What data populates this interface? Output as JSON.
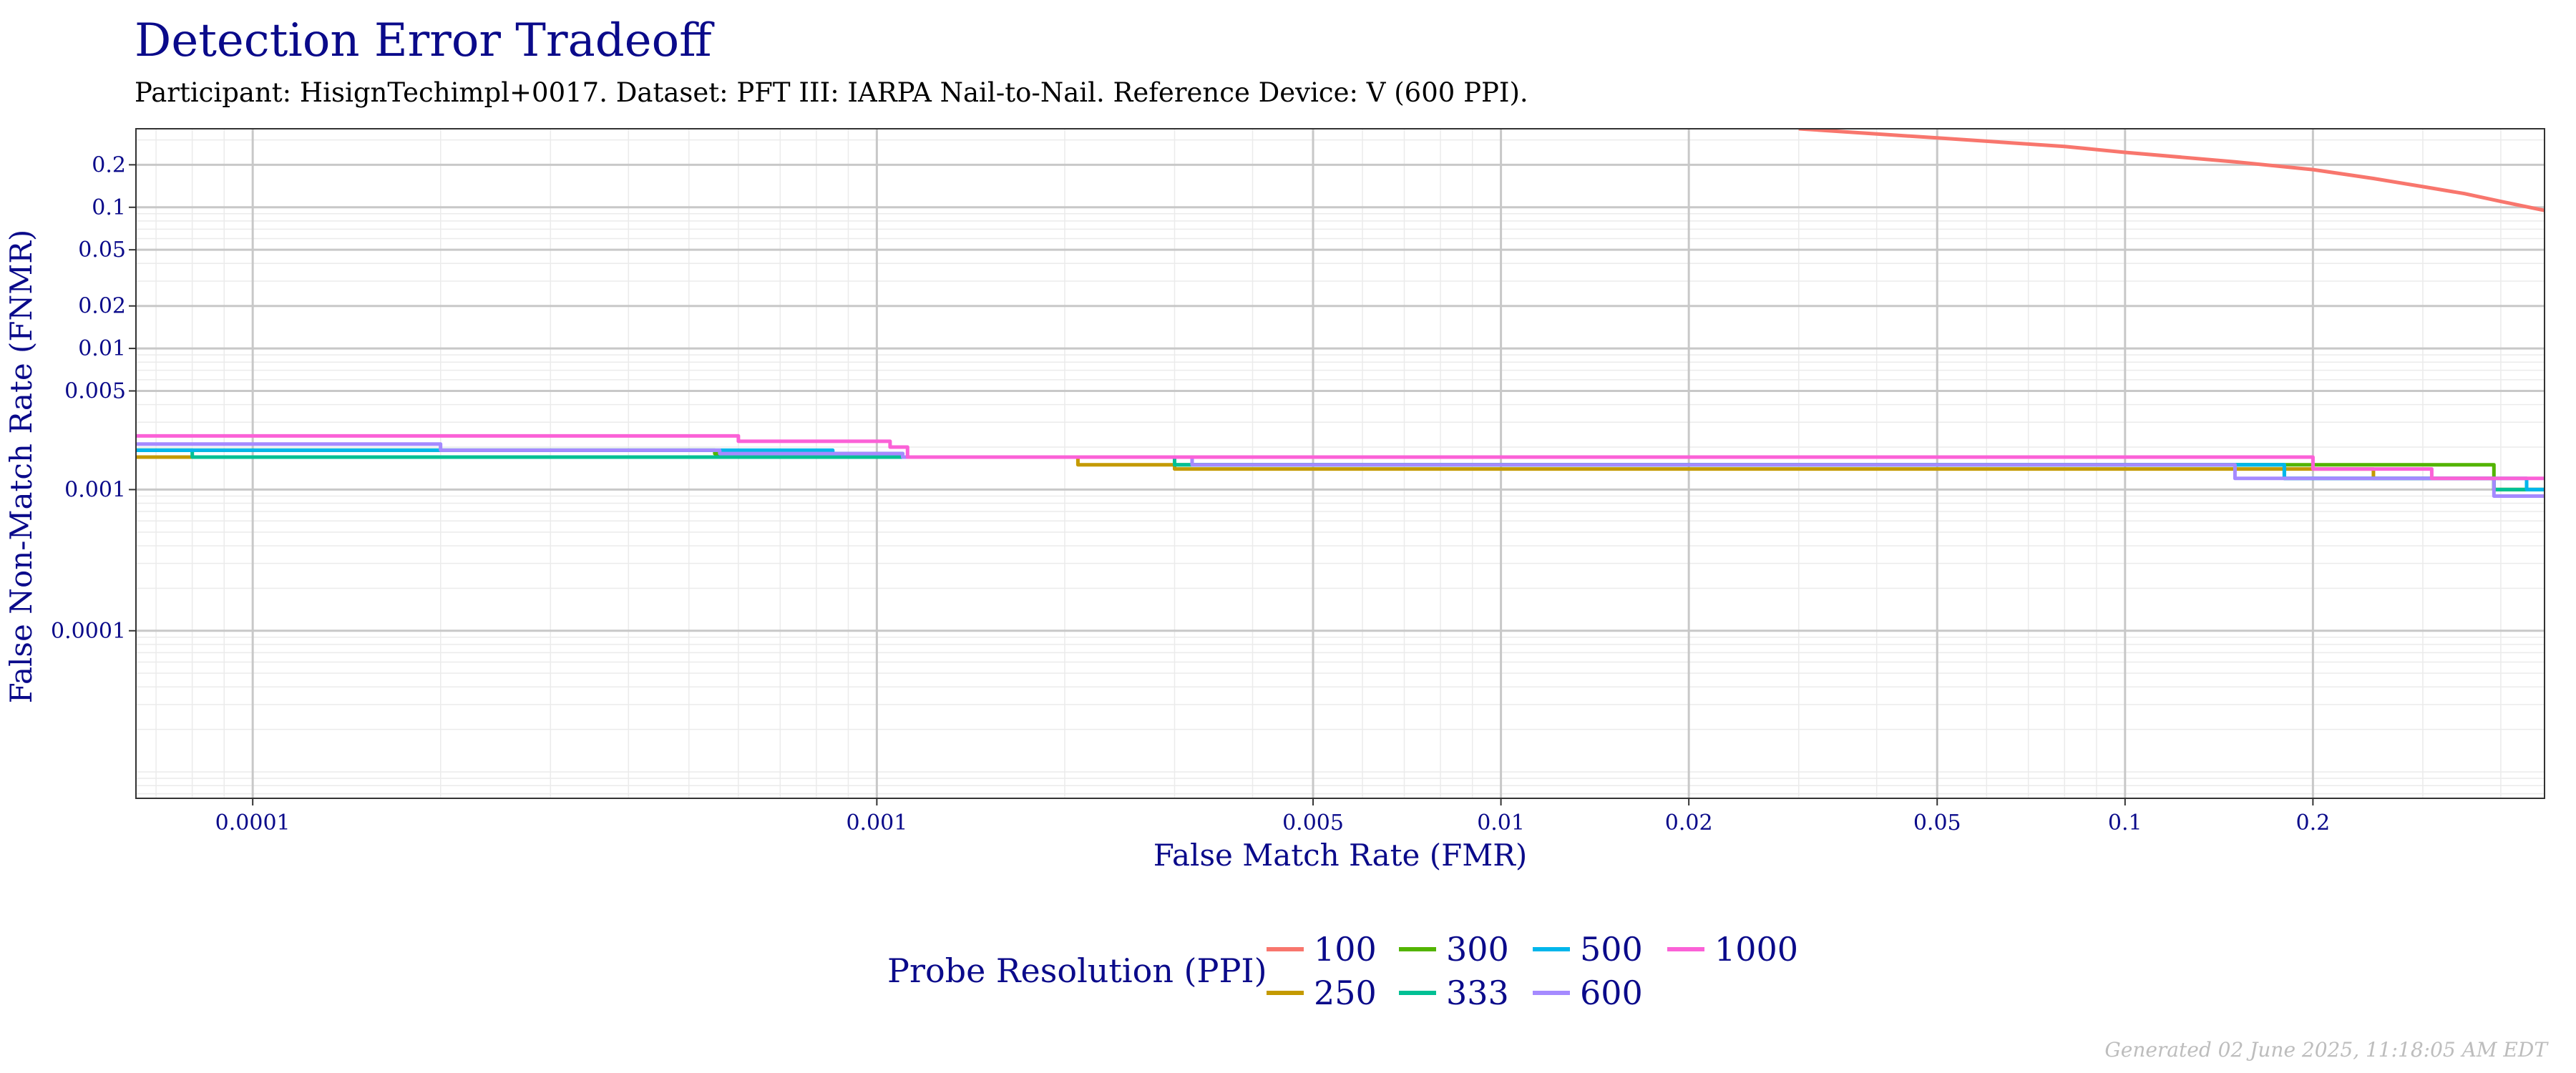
{
  "chart_data": {
    "type": "line",
    "title": "Detection Error Tradeoff",
    "subtitle": "Participant: HisignTechimpl+0017. Dataset: PFT III: IARPA Nail-to-Nail. Reference Device: V (600 PPI).",
    "xlabel": "False Match Rate (FMR)",
    "ylabel": "False Non-Match Rate (FNMR)",
    "x_scale": "log",
    "y_scale": "log",
    "xlim": [
      6.5e-05,
      0.47
    ],
    "ylim": [
      6.5e-06,
      0.36
    ],
    "x_ticks": [
      {
        "value": 0.0001,
        "label": "0.0001"
      },
      {
        "value": 0.001,
        "label": "0.001"
      },
      {
        "value": 0.005,
        "label": "0.005"
      },
      {
        "value": 0.01,
        "label": "0.01"
      },
      {
        "value": 0.02,
        "label": "0.02"
      },
      {
        "value": 0.05,
        "label": "0.05"
      },
      {
        "value": 0.1,
        "label": "0.1"
      },
      {
        "value": 0.2,
        "label": "0.2"
      }
    ],
    "y_ticks": [
      {
        "value": 0.0001,
        "label": "0.0001"
      },
      {
        "value": 0.001,
        "label": "0.001"
      },
      {
        "value": 0.005,
        "label": "0.005"
      },
      {
        "value": 0.01,
        "label": "0.01"
      },
      {
        "value": 0.02,
        "label": "0.02"
      },
      {
        "value": 0.05,
        "label": "0.05"
      },
      {
        "value": 0.1,
        "label": "0.1"
      },
      {
        "value": 0.2,
        "label": "0.2"
      }
    ],
    "grid": true,
    "legend_title": "Probe Resolution (PPI)",
    "legend_position": "bottom",
    "series": [
      {
        "name": "100",
        "color": "#F8766D",
        "step": false,
        "x": [
          0.03,
          0.05,
          0.08,
          0.1,
          0.15,
          0.2,
          0.25,
          0.3,
          0.35,
          0.4,
          0.47
        ],
        "y": [
          0.36,
          0.31,
          0.27,
          0.245,
          0.21,
          0.185,
          0.16,
          0.14,
          0.125,
          0.11,
          0.095
        ]
      },
      {
        "name": "250",
        "color": "#C49A00",
        "step": true,
        "x": [
          6.5e-05,
          0.0011,
          0.0021,
          0.003,
          0.25,
          0.39,
          0.47
        ],
        "y": [
          0.0017,
          0.0017,
          0.0015,
          0.0014,
          0.0012,
          0.001,
          0.001
        ]
      },
      {
        "name": "300",
        "color": "#53B400",
        "step": true,
        "x": [
          6.5e-05,
          0.0004,
          0.00055,
          0.0011,
          0.003,
          0.39,
          0.47
        ],
        "y": [
          0.0019,
          0.0019,
          0.0018,
          0.0017,
          0.0015,
          0.001,
          0.001
        ]
      },
      {
        "name": "333",
        "color": "#00C094",
        "step": true,
        "x": [
          6.5e-05,
          8e-05,
          0.00056,
          0.0011,
          0.003,
          0.18,
          0.39,
          0.47
        ],
        "y": [
          0.0019,
          0.0017,
          0.0017,
          0.0017,
          0.0015,
          0.0012,
          0.001,
          0.001
        ]
      },
      {
        "name": "500",
        "color": "#00B6EB",
        "step": true,
        "x": [
          6.5e-05,
          0.00056,
          0.00085,
          0.0011,
          0.0032,
          0.009,
          0.18,
          0.44,
          0.47
        ],
        "y": [
          0.0019,
          0.0019,
          0.0018,
          0.0017,
          0.0015,
          0.0015,
          0.0012,
          0.001,
          0.001
        ]
      },
      {
        "name": "600",
        "color": "#A58AFF",
        "step": true,
        "x": [
          6.5e-05,
          0.0002,
          0.00056,
          0.0011,
          0.0032,
          0.15,
          0.39,
          0.47
        ],
        "y": [
          0.0021,
          0.0019,
          0.0018,
          0.0017,
          0.0015,
          0.0012,
          0.0009,
          0.0009
        ]
      },
      {
        "name": "1000",
        "color": "#FB61D7",
        "step": true,
        "x": [
          6.5e-05,
          0.0006,
          0.00105,
          0.00112,
          0.2,
          0.31,
          0.47
        ],
        "y": [
          0.0024,
          0.0022,
          0.002,
          0.0017,
          0.0014,
          0.0012,
          0.0012
        ]
      }
    ]
  },
  "footer": "Generated 02 June 2025, 11:18:05 AM EDT"
}
